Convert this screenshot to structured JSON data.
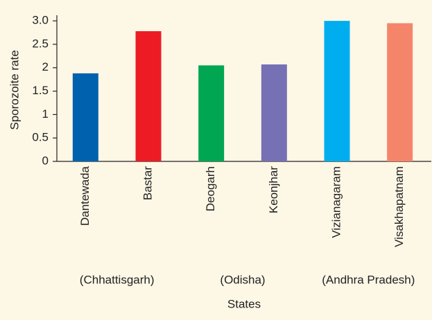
{
  "chart_data": {
    "type": "bar",
    "xlabel": "States",
    "ylabel": "Sporozoite rate",
    "categories": [
      "Dantewada",
      "Bastar",
      "Deogarh",
      "Keonjhar",
      "Vizianagaram",
      "Visakhapatnam"
    ],
    "values": [
      1.88,
      2.78,
      2.05,
      2.07,
      3.0,
      2.95
    ],
    "colors": [
      "#0061ae",
      "#ed1c24",
      "#00a651",
      "#7670b4",
      "#00adee",
      "#f5856a"
    ],
    "group_labels": [
      "(Chhattisgarh)",
      "(Odisha)",
      "(Andhra Pradesh)"
    ],
    "ylim": [
      0,
      3.15
    ],
    "yticks": [
      0,
      0.5,
      1,
      1.5,
      2,
      2.5,
      {
        "value": 3,
        "label": "3.0"
      }
    ]
  }
}
